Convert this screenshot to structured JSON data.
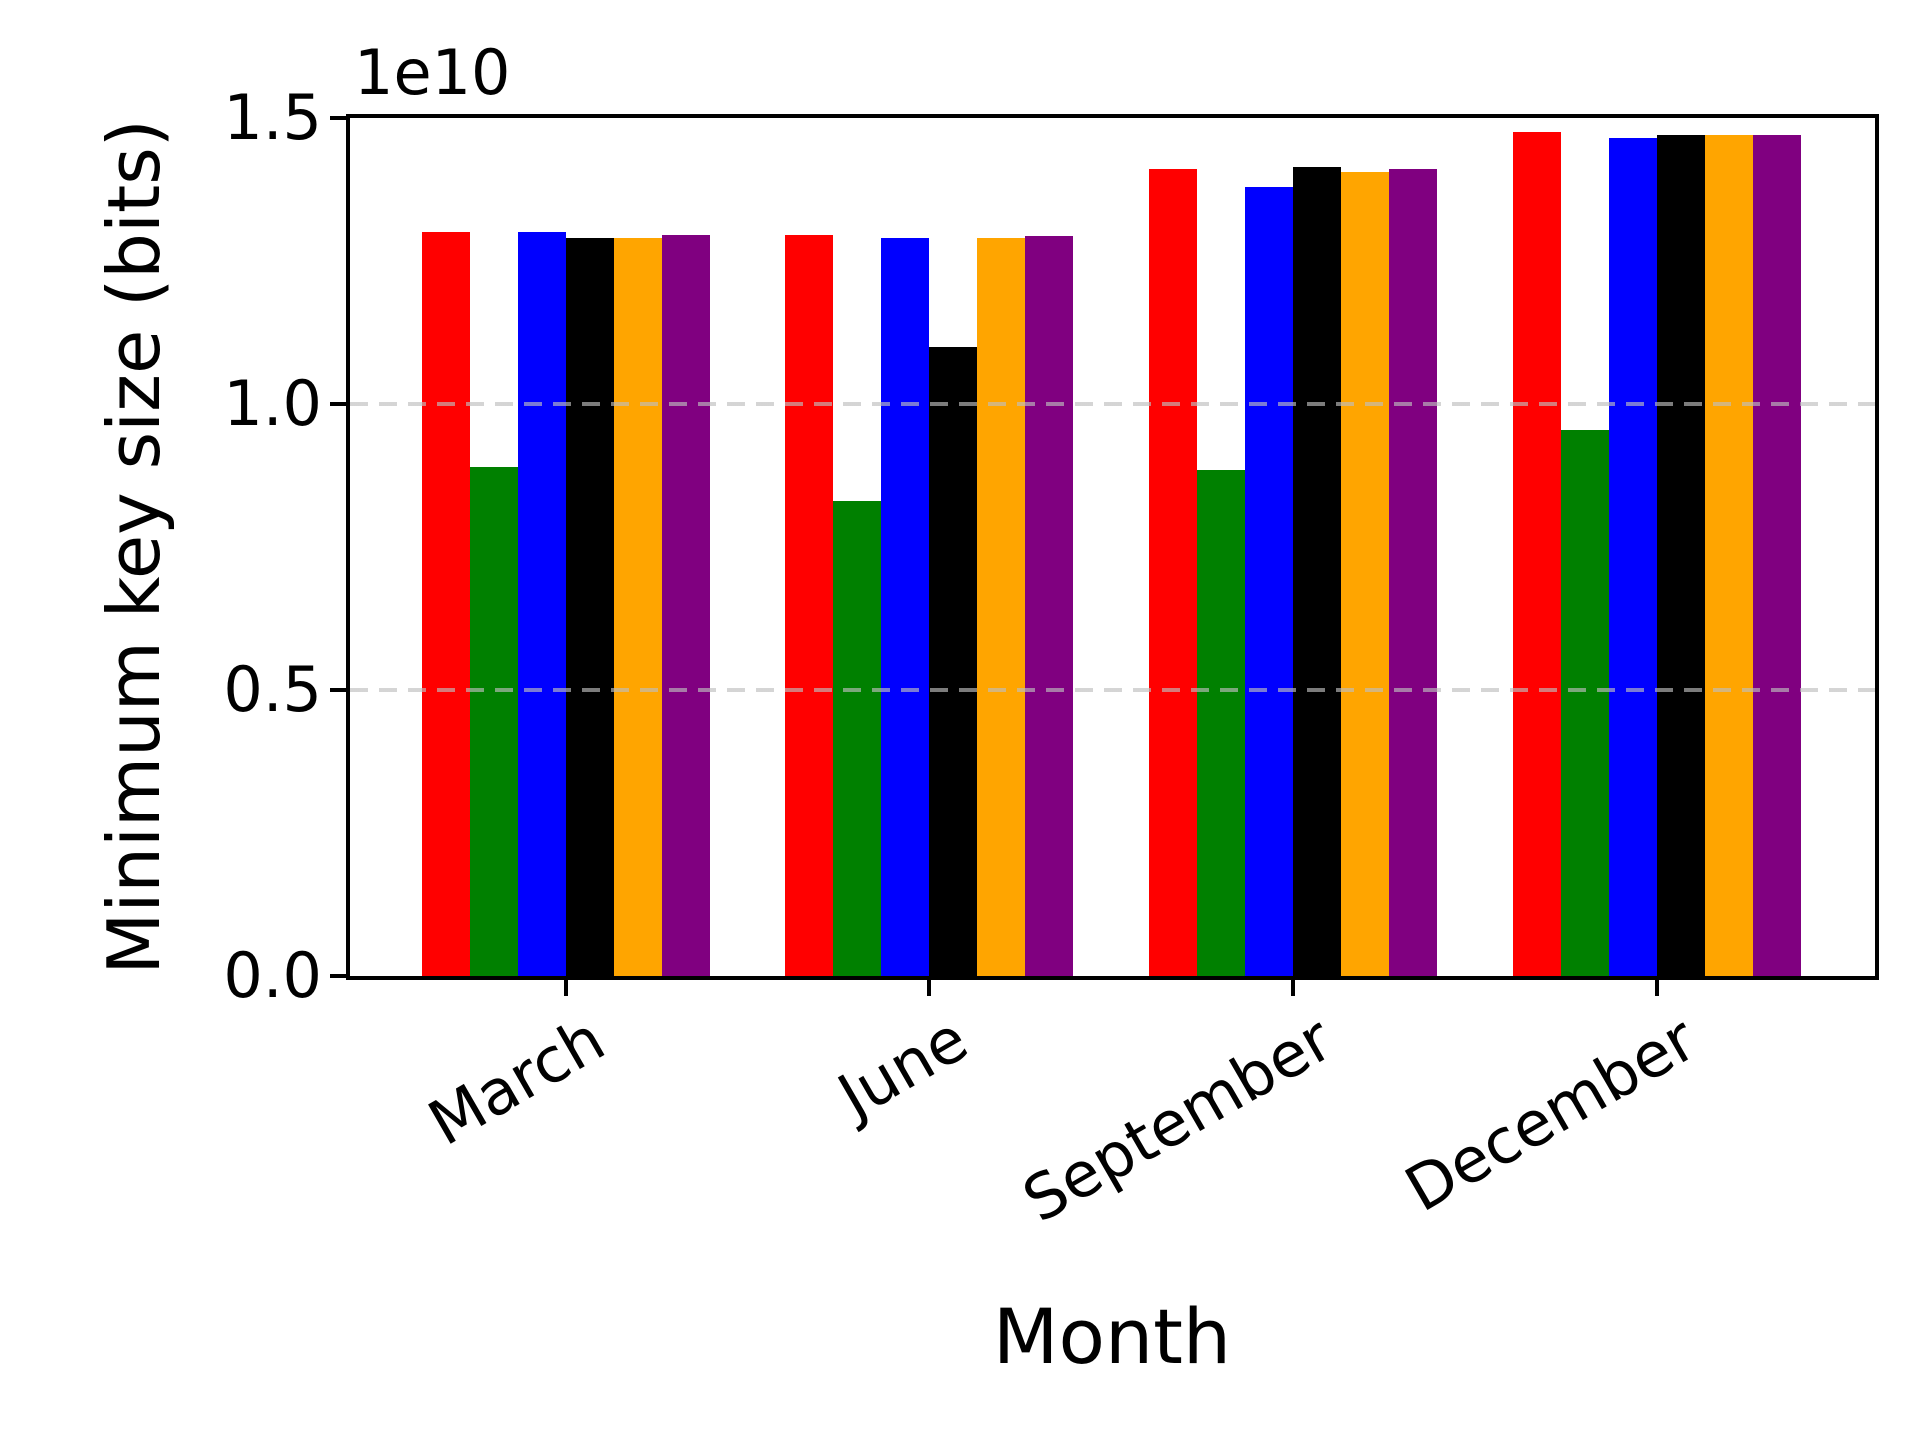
{
  "figure": {
    "background_color": "#ffffff",
    "spine_color": "#000000",
    "grid_color": "#bebebe"
  },
  "axes": {
    "x": {
      "label": "Month",
      "tick_labels": [
        "March",
        "June",
        "September",
        "December"
      ],
      "tick_rotation_deg": 30
    },
    "y": {
      "label": "Minimum key size (bits)",
      "offset_text": "1e10",
      "tick_labels": [
        "0.0",
        "0.5",
        "1.0",
        "1.5"
      ],
      "tick_values": [
        0.0,
        5000000000,
        10000000000,
        15000000000
      ],
      "gridline_values": [
        5000000000,
        10000000000
      ]
    }
  },
  "chart_data": {
    "type": "bar",
    "title": "",
    "xlabel": "Month",
    "ylabel": "Minimum key size (bits)",
    "ylim": [
      0,
      15000000000
    ],
    "grid": "horizontal-dashed",
    "legend": "none",
    "categories": [
      "March",
      "June",
      "September",
      "December"
    ],
    "series": [
      {
        "name": "red",
        "color": "#ff0000",
        "values": [
          13000000000.0,
          12950000000.0,
          14100000000.0,
          14750000000.0
        ]
      },
      {
        "name": "green",
        "color": "#008000",
        "values": [
          8900000000.0,
          8300000000.0,
          8850000000.0,
          9550000000.0
        ]
      },
      {
        "name": "blue",
        "color": "#0000ff",
        "values": [
          13000000000.0,
          12900000000.0,
          13800000000.0,
          14650000000.0
        ]
      },
      {
        "name": "black",
        "color": "#000000",
        "values": [
          12900000000.0,
          11000000000.0,
          14150000000.0,
          14700000000.0
        ]
      },
      {
        "name": "orange",
        "color": "#ffa500",
        "values": [
          12900000000.0,
          12900000000.0,
          14050000000.0,
          14700000000.0
        ]
      },
      {
        "name": "purple",
        "color": "#800080",
        "values": [
          12950000000.0,
          12930000000.0,
          14100000000.0,
          14700000000.0
        ]
      }
    ]
  }
}
